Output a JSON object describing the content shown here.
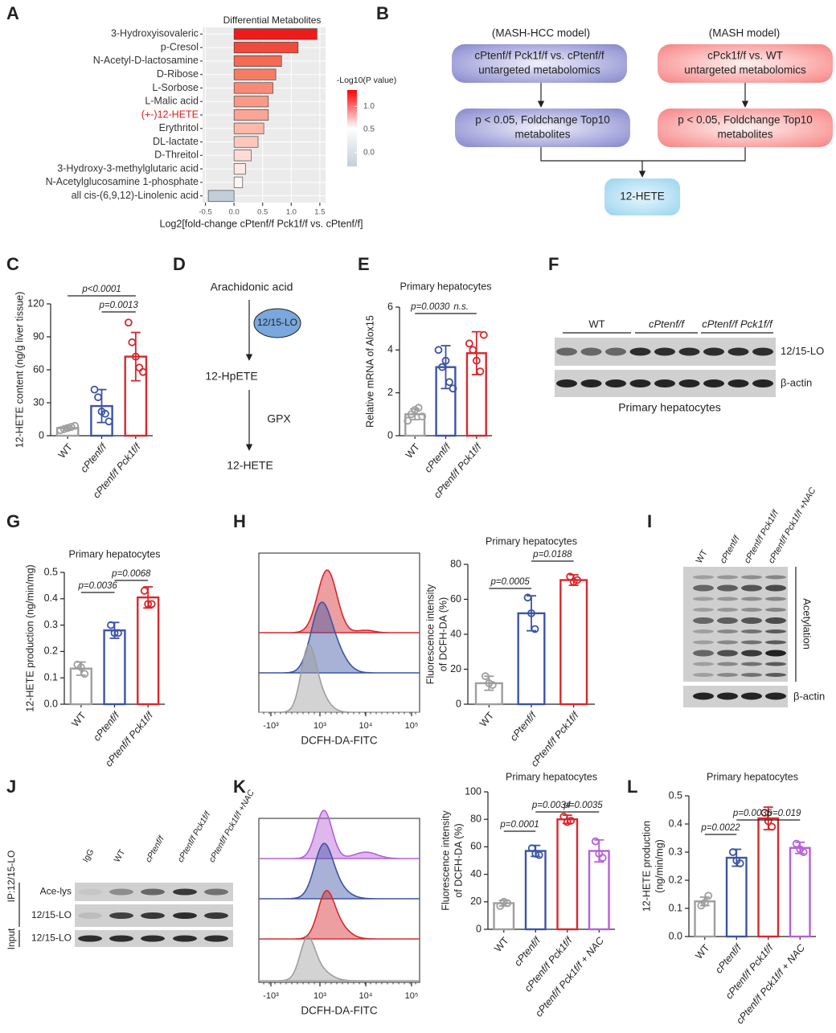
{
  "chart_data": [
    {
      "type": "hbar",
      "panel": "A",
      "title": "Differential Metabolites",
      "categories": [
        "3-Hydroxyisovaleric",
        "p-Cresol",
        "N-Acetyl-D-lactosamine",
        "D-Ribose",
        "L-Sorbose",
        "L-Malic acid",
        "(+-)12-HETE",
        "Erythritol",
        "DL-lactate",
        "D-Threitol",
        "3-Hydroxy-3-methylglutaric acid",
        "N-Acetylglucosamine 1-phosphate",
        "all cis-(6,9,12)-Linolenic acid"
      ],
      "values": [
        1.45,
        1.12,
        0.83,
        0.73,
        0.68,
        0.6,
        0.6,
        0.52,
        0.42,
        0.3,
        0.2,
        0.15,
        -0.45
      ],
      "colors": [
        "#ee1b1b",
        "#f04a3a",
        "#f36a55",
        "#f57d68",
        "#f78a76",
        "#f89a88",
        "#f9a595",
        "#fbb8ab",
        "#fcc7bd",
        "#fddcd5",
        "#fee9e5",
        "#fff5f3",
        "#c3cedc"
      ],
      "label_colors": [
        "#333333",
        "#333333",
        "#333333",
        "#333333",
        "#333333",
        "#333333",
        "#e31a1c",
        "#333333",
        "#333333",
        "#333333",
        "#333333",
        "#333333",
        "#333333"
      ],
      "xlabel": "Log2[fold-change cPtenf/f Pck1f/f vs. cPtenf/f]",
      "xlim": [
        -0.55,
        1.6
      ],
      "xticks": [
        -0.5,
        {
          "value": 0,
          "label": "0.0"
        },
        0.5,
        {
          "value": 1,
          "label": "1.0"
        },
        1.5
      ],
      "grid": true,
      "background": "#ebebeb",
      "colorbar": {
        "title": "-Log10(P value)",
        "lim": [
          -0.3,
          1.35
        ],
        "ticks": [
          {
            "value": 0,
            "label": "0.0"
          },
          0.5,
          {
            "value": 1,
            "label": "1.0"
          }
        ],
        "colors": [
          "#c3cedc",
          "#ffffff",
          "#ff0000"
        ]
      }
    },
    {
      "type": "bar",
      "panel": "C",
      "ylabel": [
        "12-HETE content (ng/g liver tissue)"
      ],
      "categories": [
        "WT",
        "cPtenf/f",
        "cPtenf/f Pck1f/f"
      ],
      "values": [
        7,
        27,
        72
      ],
      "errors": [
        2,
        15,
        22
      ],
      "points": [
        [
          5,
          6,
          7,
          8,
          9
        ],
        [
          42,
          35,
          22,
          20,
          13
        ],
        [
          103,
          85,
          72,
          62,
          58
        ]
      ],
      "colors": [
        "#9e9e9e",
        "#3c54a5",
        "#d7282d"
      ],
      "ylim": [
        0,
        120
      ],
      "yticks": [
        0,
        30,
        60,
        90,
        120
      ],
      "annotations": [
        "p<0.0001",
        "p=0.0013"
      ]
    },
    {
      "type": "bar",
      "panel": "E",
      "title": "Primary hepatocytes",
      "ylabel": [
        "Relative mRNA of Alox15"
      ],
      "categories": [
        "WT",
        "cPtenf/f",
        "cPtenf/f Pck1f/f"
      ],
      "values": [
        1.0,
        3.2,
        3.85
      ],
      "errors": [
        0.25,
        1.0,
        1.0
      ],
      "points": [
        [
          0.7,
          1.0,
          1.2,
          1.3,
          0.9
        ],
        [
          4.0,
          3.2,
          3.5,
          2.5,
          2.2
        ],
        [
          4.3,
          4.0,
          3.5,
          3.0,
          4.7
        ]
      ],
      "colors": [
        "#9e9e9e",
        "#3c54a5",
        "#d7282d"
      ],
      "ylim": [
        0,
        6
      ],
      "yticks": [
        0,
        2,
        4,
        6
      ],
      "annotations": [
        "p=0.0030",
        "n.s."
      ]
    },
    {
      "type": "bar",
      "panel": "G",
      "title": "Primary hepatocytes",
      "ylabel": [
        "12-HETE production (ng/min/mg)"
      ],
      "categories": [
        "WT",
        "cPtenf/f",
        "cPtenf/f Pck1f/f"
      ],
      "values": [
        0.135,
        0.28,
        0.405
      ],
      "errors": [
        0.025,
        0.03,
        0.04
      ],
      "points": [
        [
          0.15,
          0.14,
          0.115
        ],
        [
          0.3,
          0.27,
          0.27
        ],
        [
          0.43,
          0.38,
          0.38
        ]
      ],
      "colors": [
        "#9e9e9e",
        "#3c54a5",
        "#d7282d"
      ],
      "ylim": [
        0,
        0.5
      ],
      "yticks": [
        {
          "value": 0,
          "label": "0.0"
        },
        0.1,
        0.2,
        0.3,
        0.4,
        0.5
      ],
      "annotations": [
        "p=0.0036",
        "p=0.0068"
      ]
    },
    {
      "type": "bar",
      "panel": "H",
      "title": "Primary hepatocytes",
      "ylabel": [
        "Fluorescence  intensity",
        "of DCFH-DA (%)"
      ],
      "categories": [
        "WT",
        "cPtenf/f",
        "cPtenf/f Pck1f/f"
      ],
      "values": [
        12,
        52,
        71
      ],
      "errors": [
        4,
        10,
        3
      ],
      "points": [
        [
          16,
          12,
          11
        ],
        [
          61,
          52,
          43
        ],
        [
          73,
          70,
          71
        ]
      ],
      "colors": [
        "#9e9e9e",
        "#3c54a5",
        "#d7282d"
      ],
      "ylim": [
        0,
        80
      ],
      "yticks": [
        0,
        20,
        40,
        60,
        80
      ],
      "annotations": [
        "p=0.0005",
        "p=0.0188"
      ]
    },
    {
      "type": "bar",
      "panel": "K",
      "title": "Primary hepatocytes",
      "ylabel": [
        "Fluorescence  intensity",
        "of DCFH-DA (%)"
      ],
      "categories": [
        "WT",
        "cPtenf/f",
        "cPtenf/f Pck1f/f",
        "cPtenf/f Pck1f/f + NAC"
      ],
      "values": [
        19,
        57,
        80,
        57
      ],
      "errors": [
        2,
        4,
        3,
        8
      ],
      "points": [
        [
          17,
          20,
          19
        ],
        [
          59,
          55,
          54
        ],
        [
          82,
          78,
          79
        ],
        [
          64,
          55,
          52
        ]
      ],
      "colors": [
        "#9e9e9e",
        "#3c54a5",
        "#d7282d",
        "#b660d8"
      ],
      "ylim": [
        0,
        100
      ],
      "yticks": [
        0,
        20,
        40,
        60,
        80,
        100
      ],
      "annotations": [
        "p=0.0001",
        "p=0.0034",
        "p=0.0035"
      ]
    },
    {
      "type": "bar",
      "panel": "L",
      "title": "Primary hepatocytes",
      "ylabel": [
        "12-HETE production",
        "(ng/min/mg)"
      ],
      "categories": [
        "WT",
        "cPtenf/f",
        "cPtenf/f Pck1f/f",
        "cPtenf/f Pck1f/f + NAC"
      ],
      "values": [
        0.125,
        0.28,
        0.42,
        0.315
      ],
      "errors": [
        0.015,
        0.03,
        0.04,
        0.02
      ],
      "points": [
        [
          0.11,
          0.12,
          0.145
        ],
        [
          0.3,
          0.27,
          0.26
        ],
        [
          0.44,
          0.41,
          0.39
        ],
        [
          0.33,
          0.31,
          0.3
        ]
      ],
      "colors": [
        "#9e9e9e",
        "#3c54a5",
        "#d7282d",
        "#b660d8"
      ],
      "ylim": [
        0,
        0.5
      ],
      "yticks": [
        {
          "value": 0,
          "label": "0.0"
        },
        0.1,
        0.2,
        0.3,
        0.4,
        0.5
      ],
      "annotations": [
        "p=0.0022",
        "p=0.0035",
        "p=0.019"
      ]
    }
  ],
  "flowchart": {
    "panel": "B",
    "model_labels": [
      "(MASH-HCC model)",
      "(MASH model)"
    ],
    "boxes": [
      [
        "cPtenf/f Pck1f/f vs. cPtenf/f",
        "untargeted metabolomics"
      ],
      [
        "p < 0.05, Foldchange Top10",
        "metabolites"
      ],
      [
        "cPck1f/f vs. WT",
        "untargeted metabolomics"
      ],
      [
        "p < 0.05, Foldchange Top10",
        "metabolites"
      ]
    ],
    "result": "12-HETE"
  },
  "pathway": {
    "panel": "D",
    "steps": [
      "Arachidonic acid",
      "12-HpETE",
      "12-HETE"
    ],
    "enzymes": [
      "12/15-LO",
      "GPX"
    ]
  },
  "flow_histograms": [
    {
      "panel_of": "H",
      "xlabel": "DCFH-DA-FITC",
      "xticks": [
        "-10³",
        "10³",
        "10⁴",
        "10⁵"
      ]
    },
    {
      "panel_of": "K",
      "xlabel": "DCFH-DA-FITC",
      "xticks": [
        "-10³",
        "10³",
        "10⁴",
        "10⁵"
      ]
    }
  ],
  "blots": [
    {
      "panel": "F",
      "groups": [
        "WT",
        "cPtenf/f",
        "cPtenf/f Pck1f/f"
      ],
      "rows": [
        "12/15-LO",
        "β-actin"
      ],
      "caption": "Primary hepatocytes"
    },
    {
      "panel": "I",
      "lanes": [
        "WT",
        "cPtenf/f",
        "cPtenf/f Pck1f/f",
        "cPtenf/f Pck1f/f +NAC"
      ],
      "rows": [
        "Acetylation",
        "β-actin"
      ]
    },
    {
      "panel": "J",
      "lanes": [
        "IgG",
        "WT",
        "cPtenf/f",
        "cPtenf/f Pck1f/f",
        "cPtenf/f Pck1f/f +NAC"
      ],
      "rows": [
        "Ace-lys",
        "12/15-LO",
        "12/15-LO"
      ],
      "ip_label": "IP:12/15-LO",
      "input_label": "Input"
    }
  ]
}
